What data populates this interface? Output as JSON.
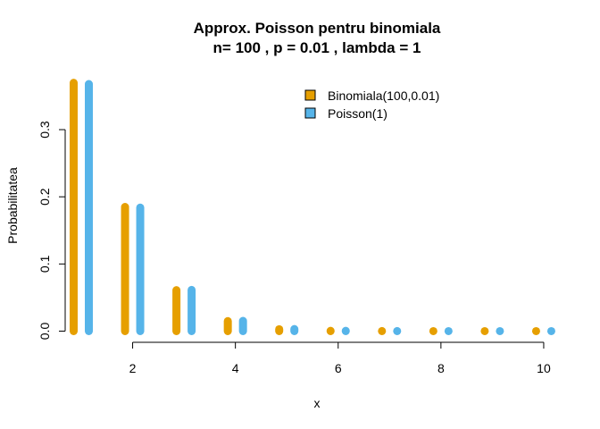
{
  "chart_data": {
    "type": "bar",
    "title_line1": "Approx. Poisson pentru binomiala",
    "title_line2": "n= 100 , p =  0.01 , lambda =  1",
    "xlabel": "x",
    "ylabel": "Probabilitatea",
    "xlim": [
      1,
      10
    ],
    "ylim": [
      0,
      0.37
    ],
    "x_ticks": [
      2,
      4,
      6,
      8,
      10
    ],
    "y_ticks": [
      0.0,
      0.1,
      0.2,
      0.3
    ],
    "y_tick_labels": [
      "0.0",
      "0.1",
      "0.2",
      "0.3"
    ],
    "x_tick_labels": [
      "2",
      "4",
      "6",
      "8",
      "10"
    ],
    "categories": [
      1,
      2,
      3,
      4,
      5,
      6,
      7,
      8,
      9,
      10
    ],
    "series": [
      {
        "name": "Binomiala(100,0.01)",
        "color": "#E69F00",
        "values": [
          0.3697,
          0.1849,
          0.061,
          0.0149,
          0.0029,
          0.0005,
          0.0001,
          0.0,
          0.0,
          0.0
        ]
      },
      {
        "name": "Poisson(1)",
        "color": "#56B4E9",
        "values": [
          0.3679,
          0.1839,
          0.0613,
          0.0153,
          0.0031,
          0.0005,
          0.0001,
          0.0,
          0.0,
          0.0
        ]
      }
    ],
    "legend_position": "top-right"
  }
}
